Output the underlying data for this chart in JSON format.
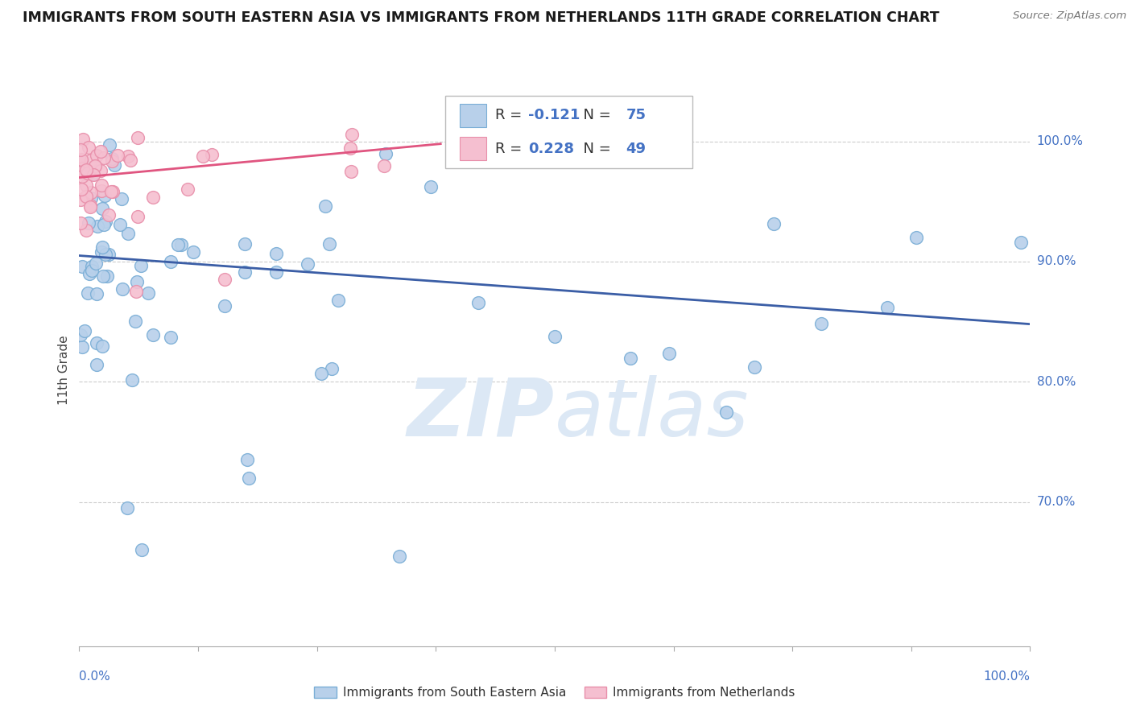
{
  "title": "IMMIGRANTS FROM SOUTH EASTERN ASIA VS IMMIGRANTS FROM NETHERLANDS 11TH GRADE CORRELATION CHART",
  "source": "Source: ZipAtlas.com",
  "ylabel": "11th Grade",
  "legend_blue_label": "Immigrants from South Eastern Asia",
  "legend_pink_label": "Immigrants from Netherlands",
  "R_blue": -0.121,
  "N_blue": 75,
  "R_pink": 0.228,
  "N_pink": 49,
  "blue_color": "#b8d0ea",
  "blue_edge_color": "#7aaed6",
  "pink_color": "#f5bfd0",
  "pink_edge_color": "#e88faa",
  "blue_line_color": "#3b5ea6",
  "pink_line_color": "#e05580",
  "title_color": "#1a1a1a",
  "axis_color": "#4472c4",
  "watermark_color": "#dce8f5",
  "grid_color": "#cccccc",
  "xlim": [
    0.0,
    1.0
  ],
  "ylim": [
    0.58,
    1.04
  ],
  "right_ytick_values": [
    1.0,
    0.9,
    0.8,
    0.7
  ],
  "right_ytick_labels": [
    "100.0%",
    "90.0%",
    "80.0%",
    "70.0%"
  ],
  "blue_trend_x": [
    0.0,
    1.0
  ],
  "blue_trend_y": [
    0.905,
    0.848
  ],
  "pink_trend_x": [
    0.0,
    0.38
  ],
  "pink_trend_y": [
    0.97,
    0.998
  ]
}
